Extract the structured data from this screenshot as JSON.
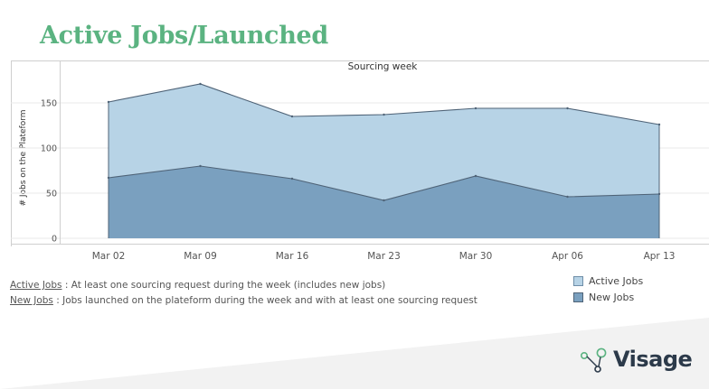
{
  "page_title": "Active Jobs/Launched",
  "colors": {
    "title": "#5bb381",
    "active_fill": "#b7d3e6",
    "new_fill": "#7aa0bf",
    "line": "#4f6377",
    "grid": "#e8e8e8"
  },
  "chart_data": {
    "type": "area",
    "title": "Sourcing week",
    "xlabel": "",
    "ylabel": "# Jobs on the Plateform",
    "categories": [
      "Mar 02",
      "Mar 09",
      "Mar 16",
      "Mar 23",
      "Mar 30",
      "Apr 06",
      "Apr 13"
    ],
    "y_ticks": [
      0,
      50,
      100,
      150
    ],
    "ylim": [
      -6,
      182
    ],
    "grid": true,
    "legend_position": "bottom-right",
    "series": [
      {
        "name": "Active Jobs",
        "values": [
          151,
          171,
          135,
          137,
          144,
          144,
          126
        ],
        "color": "#b7d3e6"
      },
      {
        "name": "New Jobs",
        "values": [
          67,
          80,
          66,
          42,
          69,
          46,
          49
        ],
        "color": "#7aa0bf"
      }
    ]
  },
  "notes": [
    {
      "term": "Active Jobs",
      "text": " : At least one sourcing request during the week (includes new jobs)"
    },
    {
      "term": "New Jobs",
      "text": " : Jobs launched on the plateform during the week and with at least one sourcing request"
    }
  ],
  "logo": {
    "text": "Visage",
    "icon": "network-nodes-icon"
  }
}
